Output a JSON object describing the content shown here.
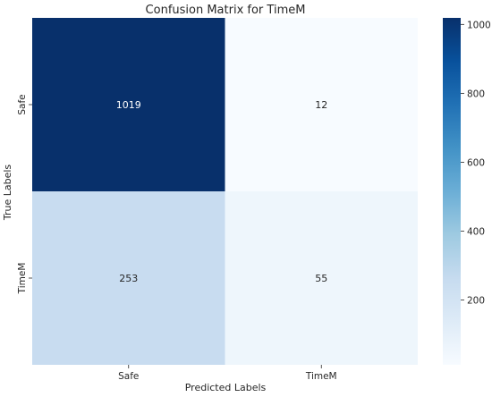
{
  "chart_data": {
    "type": "heatmap",
    "title": "Confusion Matrix for TimeM",
    "xlabel": "Predicted Labels",
    "ylabel": "True Labels",
    "x_categories": [
      "Safe",
      "TimeM"
    ],
    "y_categories": [
      "Safe",
      "TimeM"
    ],
    "values": [
      [
        1019,
        12
      ],
      [
        253,
        55
      ]
    ],
    "colormap": "Blues",
    "colorbar": {
      "range": [
        12,
        1019
      ],
      "ticks": [
        200,
        400,
        600,
        800,
        1000
      ]
    },
    "colors": {
      "min": "#f7fbff",
      "max": "#08306b",
      "text_dark": "#262626",
      "text_light": "#ffffff"
    }
  }
}
